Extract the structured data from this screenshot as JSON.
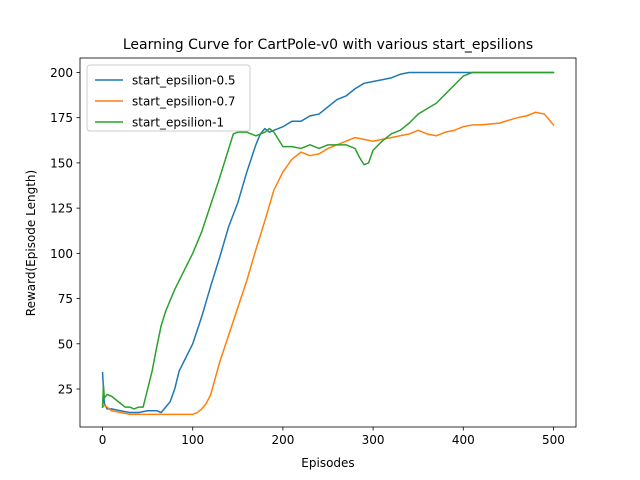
{
  "chart_data": {
    "type": "line",
    "title": "Learning Curve for CartPole-v0 with various start_epsilions",
    "xlabel": "Episodes",
    "ylabel": "Reward(Episode Length)",
    "xlim": [
      -25,
      525
    ],
    "ylim": [
      4,
      208
    ],
    "xticks": [
      0,
      100,
      200,
      300,
      400,
      500
    ],
    "yticks": [
      25,
      50,
      75,
      100,
      125,
      150,
      175,
      200
    ],
    "grid": false,
    "legend_position": "top-left",
    "series": [
      {
        "name": "start_epsilion-0.5",
        "color": "#1f77b4",
        "x": [
          0,
          2,
          5,
          10,
          20,
          30,
          40,
          50,
          60,
          65,
          70,
          75,
          80,
          85,
          90,
          100,
          110,
          120,
          130,
          140,
          150,
          160,
          170,
          175,
          180,
          185,
          190,
          200,
          210,
          220,
          230,
          240,
          250,
          260,
          270,
          280,
          290,
          300,
          310,
          320,
          330,
          340,
          350,
          360,
          380,
          400,
          420,
          440,
          460,
          480,
          500
        ],
        "y": [
          34,
          17,
          14,
          14,
          13,
          12,
          12,
          13,
          13,
          12,
          15,
          18,
          25,
          35,
          40,
          50,
          65,
          82,
          98,
          115,
          128,
          145,
          160,
          166,
          169,
          167,
          168,
          170,
          173,
          173,
          176,
          177,
          181,
          185,
          187,
          191,
          194,
          195,
          196,
          197,
          199,
          200,
          200,
          200,
          200,
          200,
          200,
          200,
          200,
          200,
          200
        ]
      },
      {
        "name": "start_epsilion-0.7",
        "color": "#ff7f0e",
        "x": [
          0,
          2,
          5,
          10,
          20,
          30,
          40,
          50,
          60,
          70,
          80,
          90,
          100,
          105,
          110,
          115,
          120,
          130,
          140,
          150,
          160,
          170,
          180,
          190,
          200,
          210,
          220,
          230,
          240,
          250,
          260,
          270,
          280,
          290,
          300,
          310,
          320,
          330,
          340,
          350,
          360,
          370,
          380,
          390,
          400,
          410,
          420,
          440,
          460,
          470,
          480,
          490,
          500
        ],
        "y": [
          15,
          16,
          15,
          13,
          12,
          11,
          11,
          11,
          11,
          11,
          11,
          11,
          11,
          12,
          14,
          17,
          22,
          40,
          55,
          70,
          85,
          102,
          118,
          135,
          145,
          152,
          156,
          154,
          155,
          158,
          160,
          162,
          164,
          163,
          162,
          163,
          164,
          165,
          166,
          168,
          166,
          165,
          167,
          168,
          170,
          171,
          171,
          172,
          175,
          176,
          178,
          177,
          171
        ]
      },
      {
        "name": "start_epsilion-1",
        "color": "#2ca02c",
        "x": [
          0,
          1,
          2,
          5,
          10,
          15,
          20,
          25,
          30,
          35,
          40,
          45,
          50,
          55,
          60,
          65,
          70,
          80,
          90,
          100,
          110,
          120,
          130,
          140,
          145,
          150,
          160,
          170,
          180,
          185,
          190,
          200,
          210,
          220,
          230,
          240,
          250,
          260,
          270,
          280,
          285,
          290,
          295,
          300,
          310,
          320,
          330,
          340,
          350,
          360,
          370,
          380,
          390,
          400,
          410,
          420,
          430,
          440,
          450,
          460,
          480,
          500
        ],
        "y": [
          15,
          27,
          20,
          22,
          21,
          19,
          17,
          15,
          15,
          14,
          15,
          15,
          25,
          35,
          48,
          60,
          68,
          80,
          90,
          100,
          112,
          127,
          142,
          158,
          166,
          167,
          167,
          165,
          167,
          169,
          167,
          159,
          159,
          158,
          160,
          158,
          160,
          160,
          160,
          158,
          153,
          149,
          150,
          157,
          162,
          166,
          168,
          172,
          177,
          180,
          183,
          188,
          193,
          198,
          200,
          200,
          200,
          200,
          200,
          200,
          200,
          200
        ]
      }
    ]
  }
}
